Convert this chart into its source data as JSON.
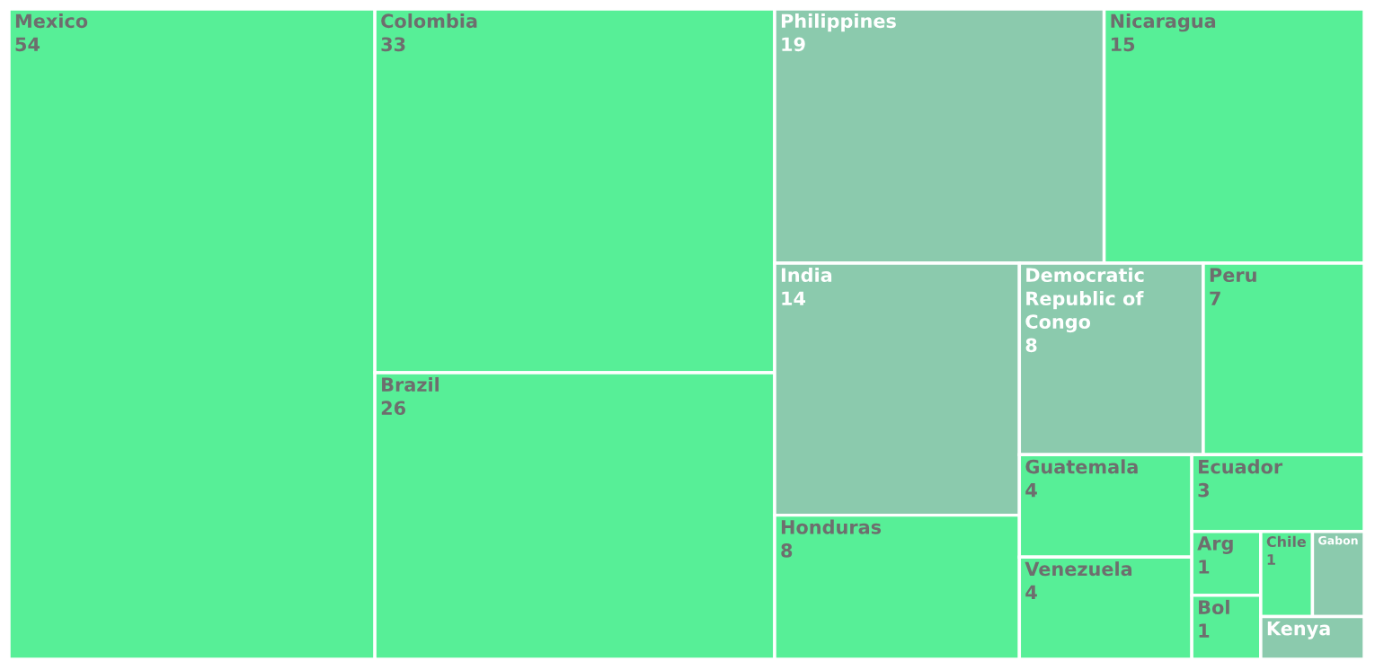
{
  "chart_data": {
    "type": "other",
    "categories": [
      "Mexico",
      "Colombia",
      "Brazil",
      "Philippines",
      "Nicaragua",
      "India",
      "Honduras",
      "Democratic Republic of Congo",
      "Peru",
      "Guatemala",
      "Venezuela",
      "Ecuador",
      "Arg",
      "Bol",
      "Chile",
      "Gabon",
      "Kenya"
    ],
    "values": [
      54,
      33,
      26,
      19,
      15,
      14,
      8,
      8,
      7,
      4,
      4,
      3,
      1,
      1,
      1,
      null,
      null
    ],
    "data_labels": true,
    "colors": [
      "#57ef97",
      "#57ef97",
      "#57ef97",
      "#8bcaad",
      "#57ef97",
      "#8bcaad",
      "#57ef97",
      "#8bcaad",
      "#57ef97",
      "#57ef97",
      "#57ef97",
      "#57ef97",
      "#57ef97",
      "#57ef97",
      "#57ef97",
      "#8bcaad",
      "#8bcaad"
    ]
  }
}
